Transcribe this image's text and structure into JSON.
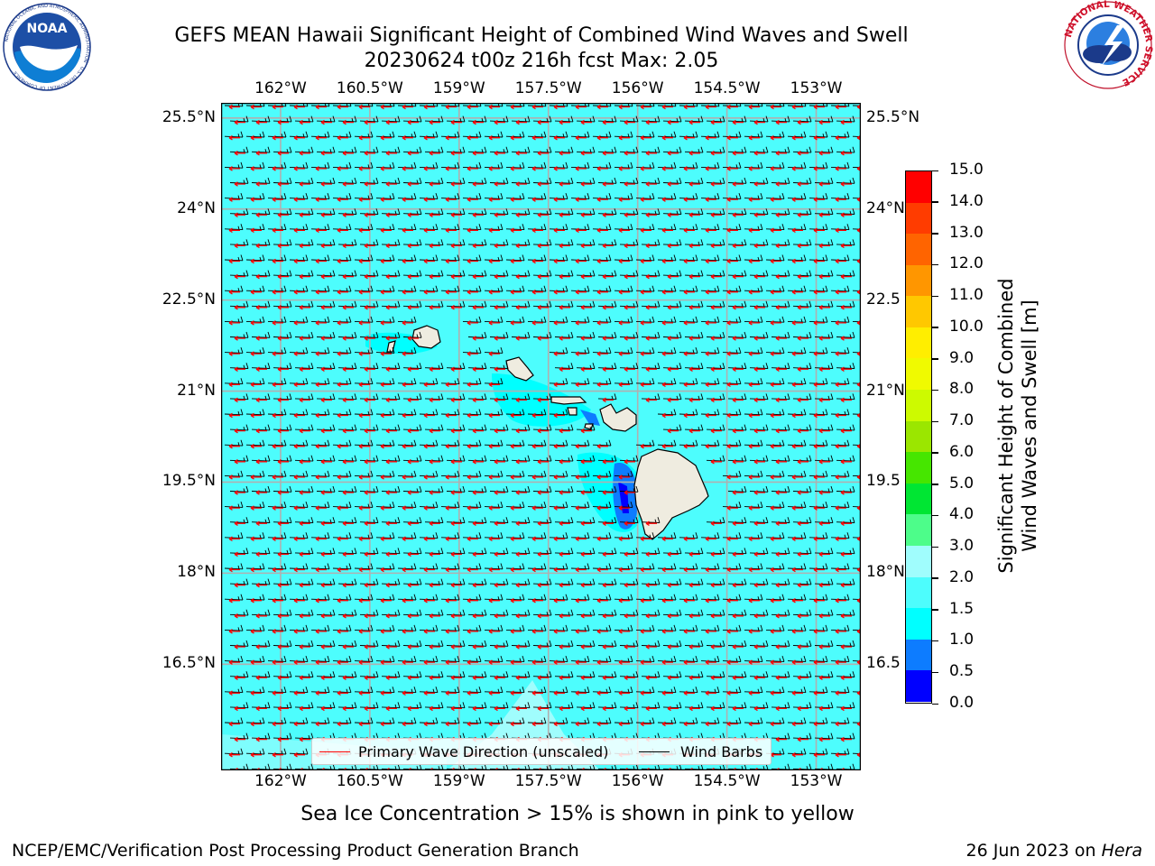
{
  "header": {
    "title_line1": "GEFS MEAN Hawaii Significant Height of Combined Wind Waves and Swell",
    "title_line2": "20230624 t00z 216h fcst   Max: 2.05"
  },
  "logos": {
    "left": {
      "name": "NOAA",
      "ring_text": "NATIONAL OCEANIC AND ATMOSPHERIC ADMINISTRATION",
      "bottom_text": "U.S. DEPARTMENT OF COMMERCE"
    },
    "right": {
      "ring_text": "NATIONAL WEATHER SERVICE"
    }
  },
  "map": {
    "lon_labels": [
      "162°W",
      "160.5°W",
      "159°W",
      "157.5°W",
      "156°W",
      "154.5°W",
      "153°W"
    ],
    "lat_labels_left": [
      "25.5°N",
      "24°N",
      "22.5°N",
      "21°N",
      "19.5°N",
      "18°N",
      "16.5°N"
    ],
    "lat_labels_right": [
      "25.5°N",
      "24°N",
      "22.5",
      "21°N",
      "19.5",
      "18°N",
      "16.5"
    ],
    "lon_range": [
      -163.0,
      -152.25
    ],
    "lat_range": [
      14.75,
      25.75
    ],
    "ocean_color": "#4dfdfd",
    "land_color": "#efece0",
    "grid_color": "#b0b0b0",
    "barb_color": "#000000",
    "wave_dir_color": "#ff0000",
    "legend": {
      "wave_dir": "Primary Wave Direction (unscaled)",
      "wind_barbs": "Wind Barbs"
    }
  },
  "colorbar": {
    "label_line1": "Significant Height of Combined",
    "label_line2": "Wind Waves and Swell [m]",
    "ticks": [
      "0.0",
      "0.5",
      "1.0",
      "1.5",
      "2.0",
      "3.0",
      "4.0",
      "5.0",
      "6.0",
      "7.0",
      "8.0",
      "9.0",
      "10.0",
      "11.0",
      "12.0",
      "13.0",
      "14.0",
      "15.0"
    ],
    "colors": [
      "#0000ff",
      "#0d7cff",
      "#00ffff",
      "#4dfdfd",
      "#a0fdfd",
      "#4dfd8a",
      "#00e633",
      "#46e600",
      "#9be600",
      "#cdfa00",
      "#f0fa00",
      "#ffee00",
      "#ffc800",
      "#ff9600",
      "#ff6400",
      "#ff3c00",
      "#ff0000"
    ]
  },
  "footer": {
    "note": "Sea Ice Concentration > 15% is shown in pink to yellow",
    "left": "NCEP/EMC/Verification Post Processing Product Generation Branch",
    "right_date": "26 Jun 2023 on ",
    "right_host": "Hera"
  }
}
